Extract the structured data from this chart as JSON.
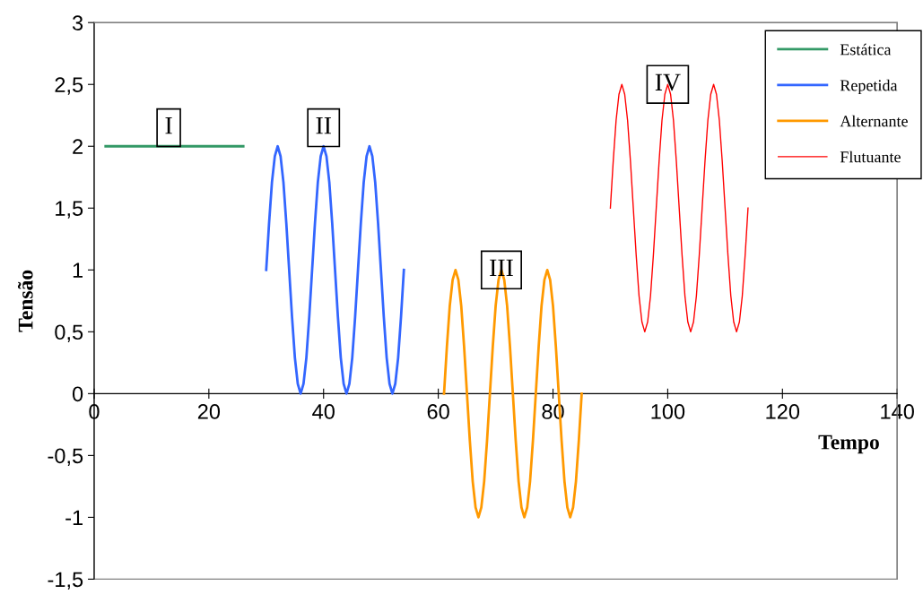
{
  "chart_data": {
    "type": "line",
    "xlabel": "Tempo",
    "ylabel": "Tensão",
    "xlim": [
      0,
      140
    ],
    "xticks": [
      0,
      20,
      40,
      60,
      80,
      100,
      120,
      140
    ],
    "ylim": [
      -1.5,
      3
    ],
    "yticks": [
      {
        "value": -1.5,
        "label": "-1,5"
      },
      -1,
      {
        "value": -0.5,
        "label": "-0,5"
      },
      0,
      {
        "value": 0.5,
        "label": "0,5"
      },
      1,
      {
        "value": 1.5,
        "label": "1,5"
      },
      2,
      {
        "value": 2.5,
        "label": "2,5"
      },
      3
    ],
    "grid": false,
    "legend": "top right",
    "marker": "none",
    "line_style": "solid",
    "series": [
      {
        "name": "Estática",
        "color": "#339966",
        "x": [
          2,
          26
        ],
        "values": [
          2,
          2
        ]
      },
      {
        "name": "Repetida",
        "color": "#3366ff",
        "x": [
          30,
          30.5,
          31,
          31.5,
          32,
          32.5,
          33,
          33.5,
          34,
          34.5,
          35,
          35.5,
          36,
          36.5,
          37,
          37.5,
          38,
          38.5,
          39,
          39.5,
          40,
          40.5,
          41,
          41.5,
          42,
          42.5,
          43,
          43.5,
          44,
          44.5,
          45,
          45.5,
          46,
          46.5,
          47,
          47.5,
          48,
          48.5,
          49,
          49.5,
          50,
          50.5,
          51,
          51.5,
          52,
          52.5,
          53,
          53.5,
          54
        ],
        "values": [
          1,
          1.38,
          1.71,
          1.92,
          2,
          1.92,
          1.71,
          1.38,
          1,
          0.62,
          0.29,
          0.08,
          0,
          0.08,
          0.29,
          0.62,
          1,
          1.38,
          1.71,
          1.92,
          2,
          1.92,
          1.71,
          1.38,
          1,
          0.62,
          0.29,
          0.08,
          0,
          0.08,
          0.29,
          0.62,
          1,
          1.38,
          1.71,
          1.92,
          2,
          1.92,
          1.71,
          1.38,
          1,
          0.62,
          0.29,
          0.08,
          0,
          0.08,
          0.29,
          0.62,
          1
        ]
      },
      {
        "name": "Alternante",
        "color": "#ff9900",
        "x": [
          61,
          61.5,
          62,
          62.5,
          63,
          63.5,
          64,
          64.5,
          65,
          65.5,
          66,
          66.5,
          67,
          67.5,
          68,
          68.5,
          69,
          69.5,
          70,
          70.5,
          71,
          71.5,
          72,
          72.5,
          73,
          73.5,
          74,
          74.5,
          75,
          75.5,
          76,
          76.5,
          77,
          77.5,
          78,
          78.5,
          79,
          79.5,
          80,
          80.5,
          81,
          81.5,
          82,
          82.5,
          83,
          83.5,
          84,
          84.5,
          85
        ],
        "values": [
          0,
          0.38,
          0.71,
          0.92,
          1,
          0.92,
          0.71,
          0.38,
          0,
          -0.38,
          -0.71,
          -0.92,
          -1,
          -0.92,
          -0.71,
          -0.38,
          0,
          0.38,
          0.71,
          0.92,
          1,
          0.92,
          0.71,
          0.38,
          0,
          -0.38,
          -0.71,
          -0.92,
          -1,
          -0.92,
          -0.71,
          -0.38,
          0,
          0.38,
          0.71,
          0.92,
          1,
          0.92,
          0.71,
          0.38,
          0,
          -0.38,
          -0.71,
          -0.92,
          -1,
          -0.92,
          -0.71,
          -0.38,
          0
        ]
      },
      {
        "name": "Flutuante",
        "color": "#ff0000",
        "x": [
          90,
          90.5,
          91,
          91.5,
          92,
          92.5,
          93,
          93.5,
          94,
          94.5,
          95,
          95.5,
          96,
          96.5,
          97,
          97.5,
          98,
          98.5,
          99,
          99.5,
          100,
          100.5,
          101,
          101.5,
          102,
          102.5,
          103,
          103.5,
          104,
          104.5,
          105,
          105.5,
          106,
          106.5,
          107,
          107.5,
          108,
          108.5,
          109,
          109.5,
          110,
          110.5,
          111,
          111.5,
          112,
          112.5,
          113,
          113.5,
          114
        ],
        "values": [
          1.5,
          1.88,
          2.21,
          2.42,
          2.5,
          2.42,
          2.21,
          1.88,
          1.5,
          1.12,
          0.79,
          0.58,
          0.5,
          0.58,
          0.79,
          1.12,
          1.5,
          1.88,
          2.21,
          2.42,
          2.5,
          2.42,
          2.21,
          1.88,
          1.5,
          1.12,
          0.79,
          0.58,
          0.5,
          0.58,
          0.79,
          1.12,
          1.5,
          1.88,
          2.21,
          2.42,
          2.5,
          2.42,
          2.21,
          1.88,
          1.5,
          1.12,
          0.79,
          0.58,
          0.5,
          0.58,
          0.79,
          1.12,
          1.5
        ]
      }
    ],
    "annotations": [
      {
        "text": "I",
        "x": 13,
        "y": 2.15
      },
      {
        "text": "II",
        "x": 40,
        "y": 2.15
      },
      {
        "text": "III",
        "x": 71,
        "y": 1
      },
      {
        "text": "IV",
        "x": 100,
        "y": 2.5
      }
    ]
  }
}
